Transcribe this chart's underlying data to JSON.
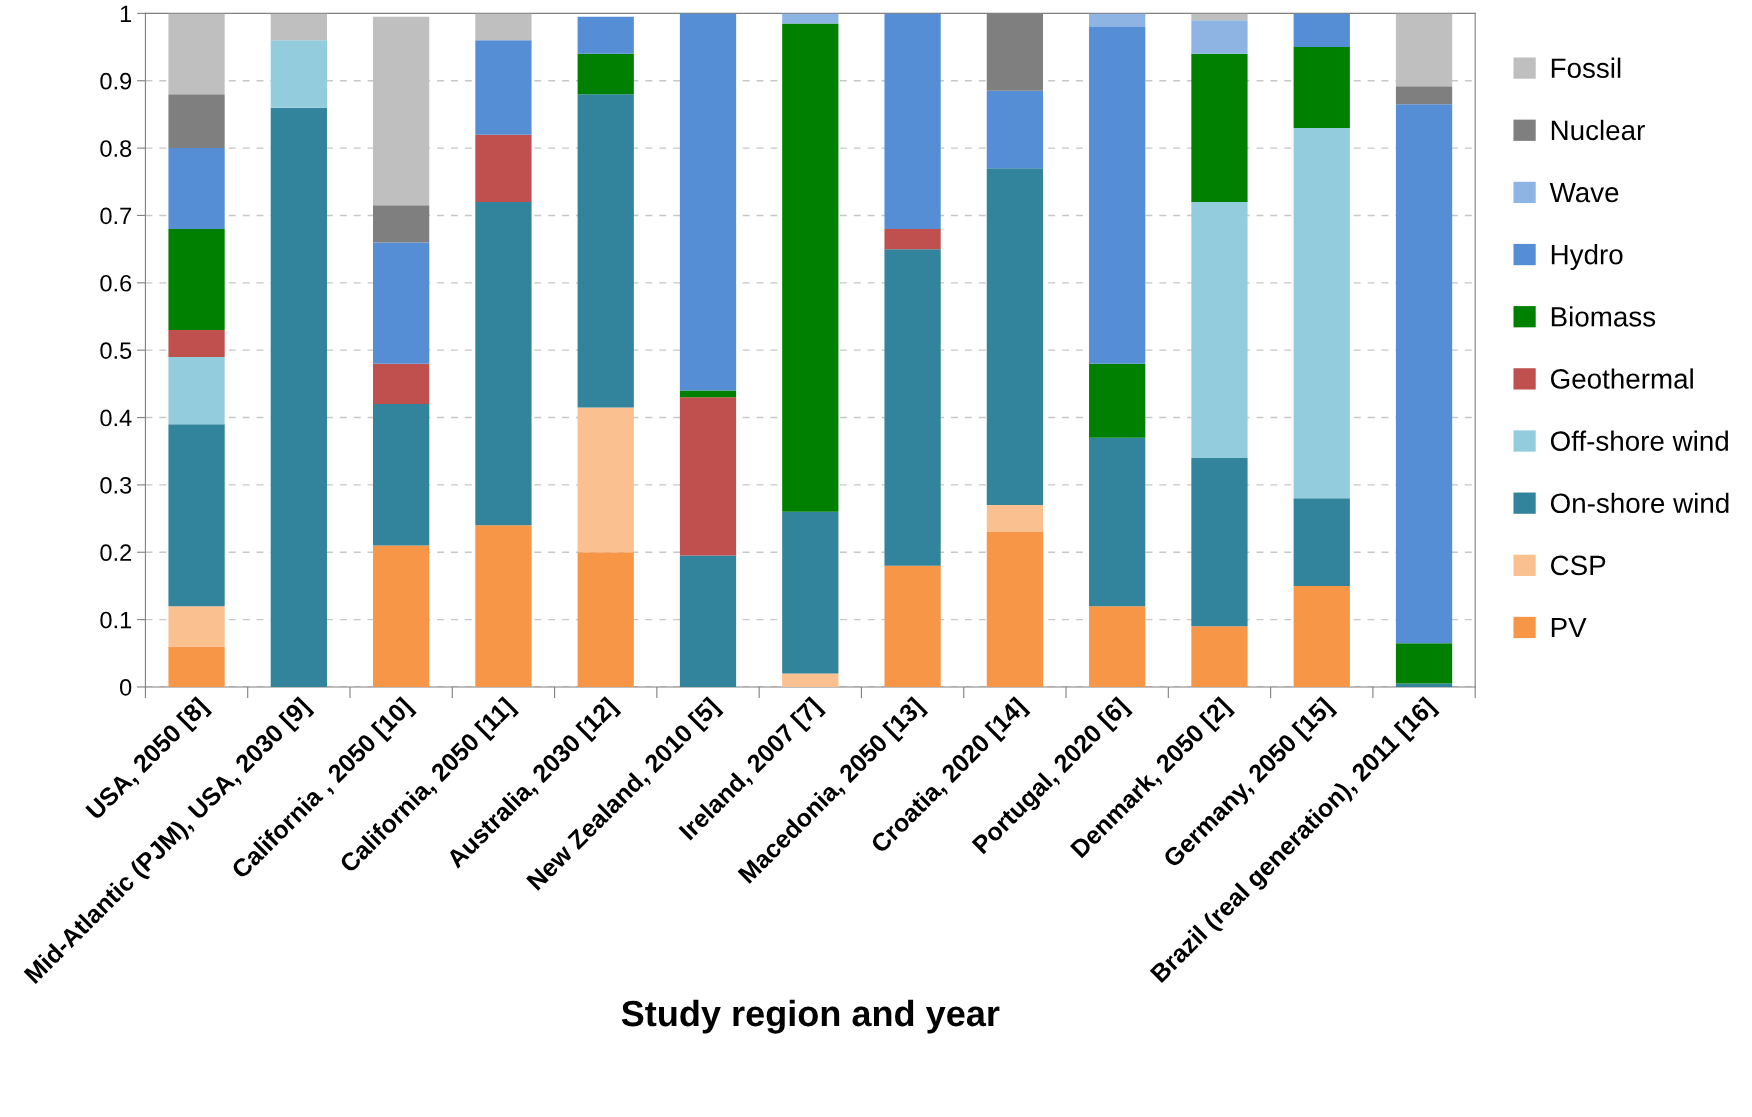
{
  "chart_data": {
    "type": "bar",
    "stacked": true,
    "xlabel": "Study region and year",
    "categories": [
      "USA, 2050 [8]",
      "Mid-Atlantic (PJM), USA, 2030 [9]",
      "California , 2050 [10]",
      "California, 2050 [11]",
      "Australia, 2030 [12]",
      "New Zealand, 2010 [5]",
      "Ireland, 2007 [7]",
      "Macedonia, 2050 [13]",
      "Croatia, 2020 [14]",
      "Portugal, 2020 [6]",
      "Denmark, 2050 [2]",
      "Germany, 2050 [15]",
      "Brazil (real generation), 2011 [16]"
    ],
    "series": [
      {
        "name": "PV",
        "color": "#f79646",
        "values": [
          0.06,
          0,
          0.21,
          0.24,
          0.2,
          0,
          0,
          0.18,
          0.23,
          0.12,
          0.09,
          0.15,
          0
        ]
      },
      {
        "name": "CSP",
        "color": "#fac090",
        "values": [
          0.06,
          0,
          0,
          0,
          0.215,
          0,
          0.02,
          0,
          0.04,
          0,
          0,
          0,
          0
        ]
      },
      {
        "name": "On-shore wind",
        "color": "#31849b",
        "values": [
          0.27,
          0.86,
          0.21,
          0.48,
          0.465,
          0.195,
          0.24,
          0.47,
          0.5,
          0.25,
          0.25,
          0.13,
          0.005
        ]
      },
      {
        "name": "Off-shore wind",
        "color": "#93cddd",
        "values": [
          0.1,
          0.1,
          0,
          0,
          0,
          0,
          0,
          0,
          0,
          0,
          0.38,
          0.55,
          0
        ]
      },
      {
        "name": "Geothermal",
        "color": "#c0504d",
        "values": [
          0.04,
          0,
          0.06,
          0.1,
          0,
          0.235,
          0,
          0.03,
          0,
          0,
          0,
          0,
          0
        ]
      },
      {
        "name": "Biomass",
        "color": "#008000",
        "values": [
          0.15,
          0,
          0,
          0,
          0.06,
          0.01,
          0.725,
          0,
          0,
          0.11,
          0.22,
          0.12,
          0.06
        ]
      },
      {
        "name": "Hydro",
        "color": "#558ed5",
        "values": [
          0.12,
          0,
          0.18,
          0.14,
          0.055,
          0.56,
          0,
          0.32,
          0.115,
          0.5,
          0,
          0.05,
          0.8
        ]
      },
      {
        "name": "Wave",
        "color": "#8eb4e3",
        "values": [
          0,
          0,
          0,
          0,
          0,
          0,
          0.015,
          0,
          0,
          0.02,
          0.05,
          0,
          0
        ]
      },
      {
        "name": "Nuclear",
        "color": "#7f7f7f",
        "values": [
          0.08,
          0,
          0.055,
          0,
          0,
          0,
          0,
          0,
          0.115,
          0,
          0,
          0,
          0.027
        ]
      },
      {
        "name": "Fossil",
        "color": "#bfbfbf",
        "values": [
          0.12,
          0.04,
          0.28,
          0.04,
          0,
          0,
          0,
          0,
          0,
          0,
          0.01,
          0,
          0.108
        ]
      }
    ],
    "ylim": [
      0,
      1
    ],
    "yticks": [
      0,
      0.1,
      0.2,
      0.3,
      0.4,
      0.5,
      0.6,
      0.7,
      0.8,
      0.9,
      1
    ],
    "grid": "y",
    "legend": "right"
  }
}
